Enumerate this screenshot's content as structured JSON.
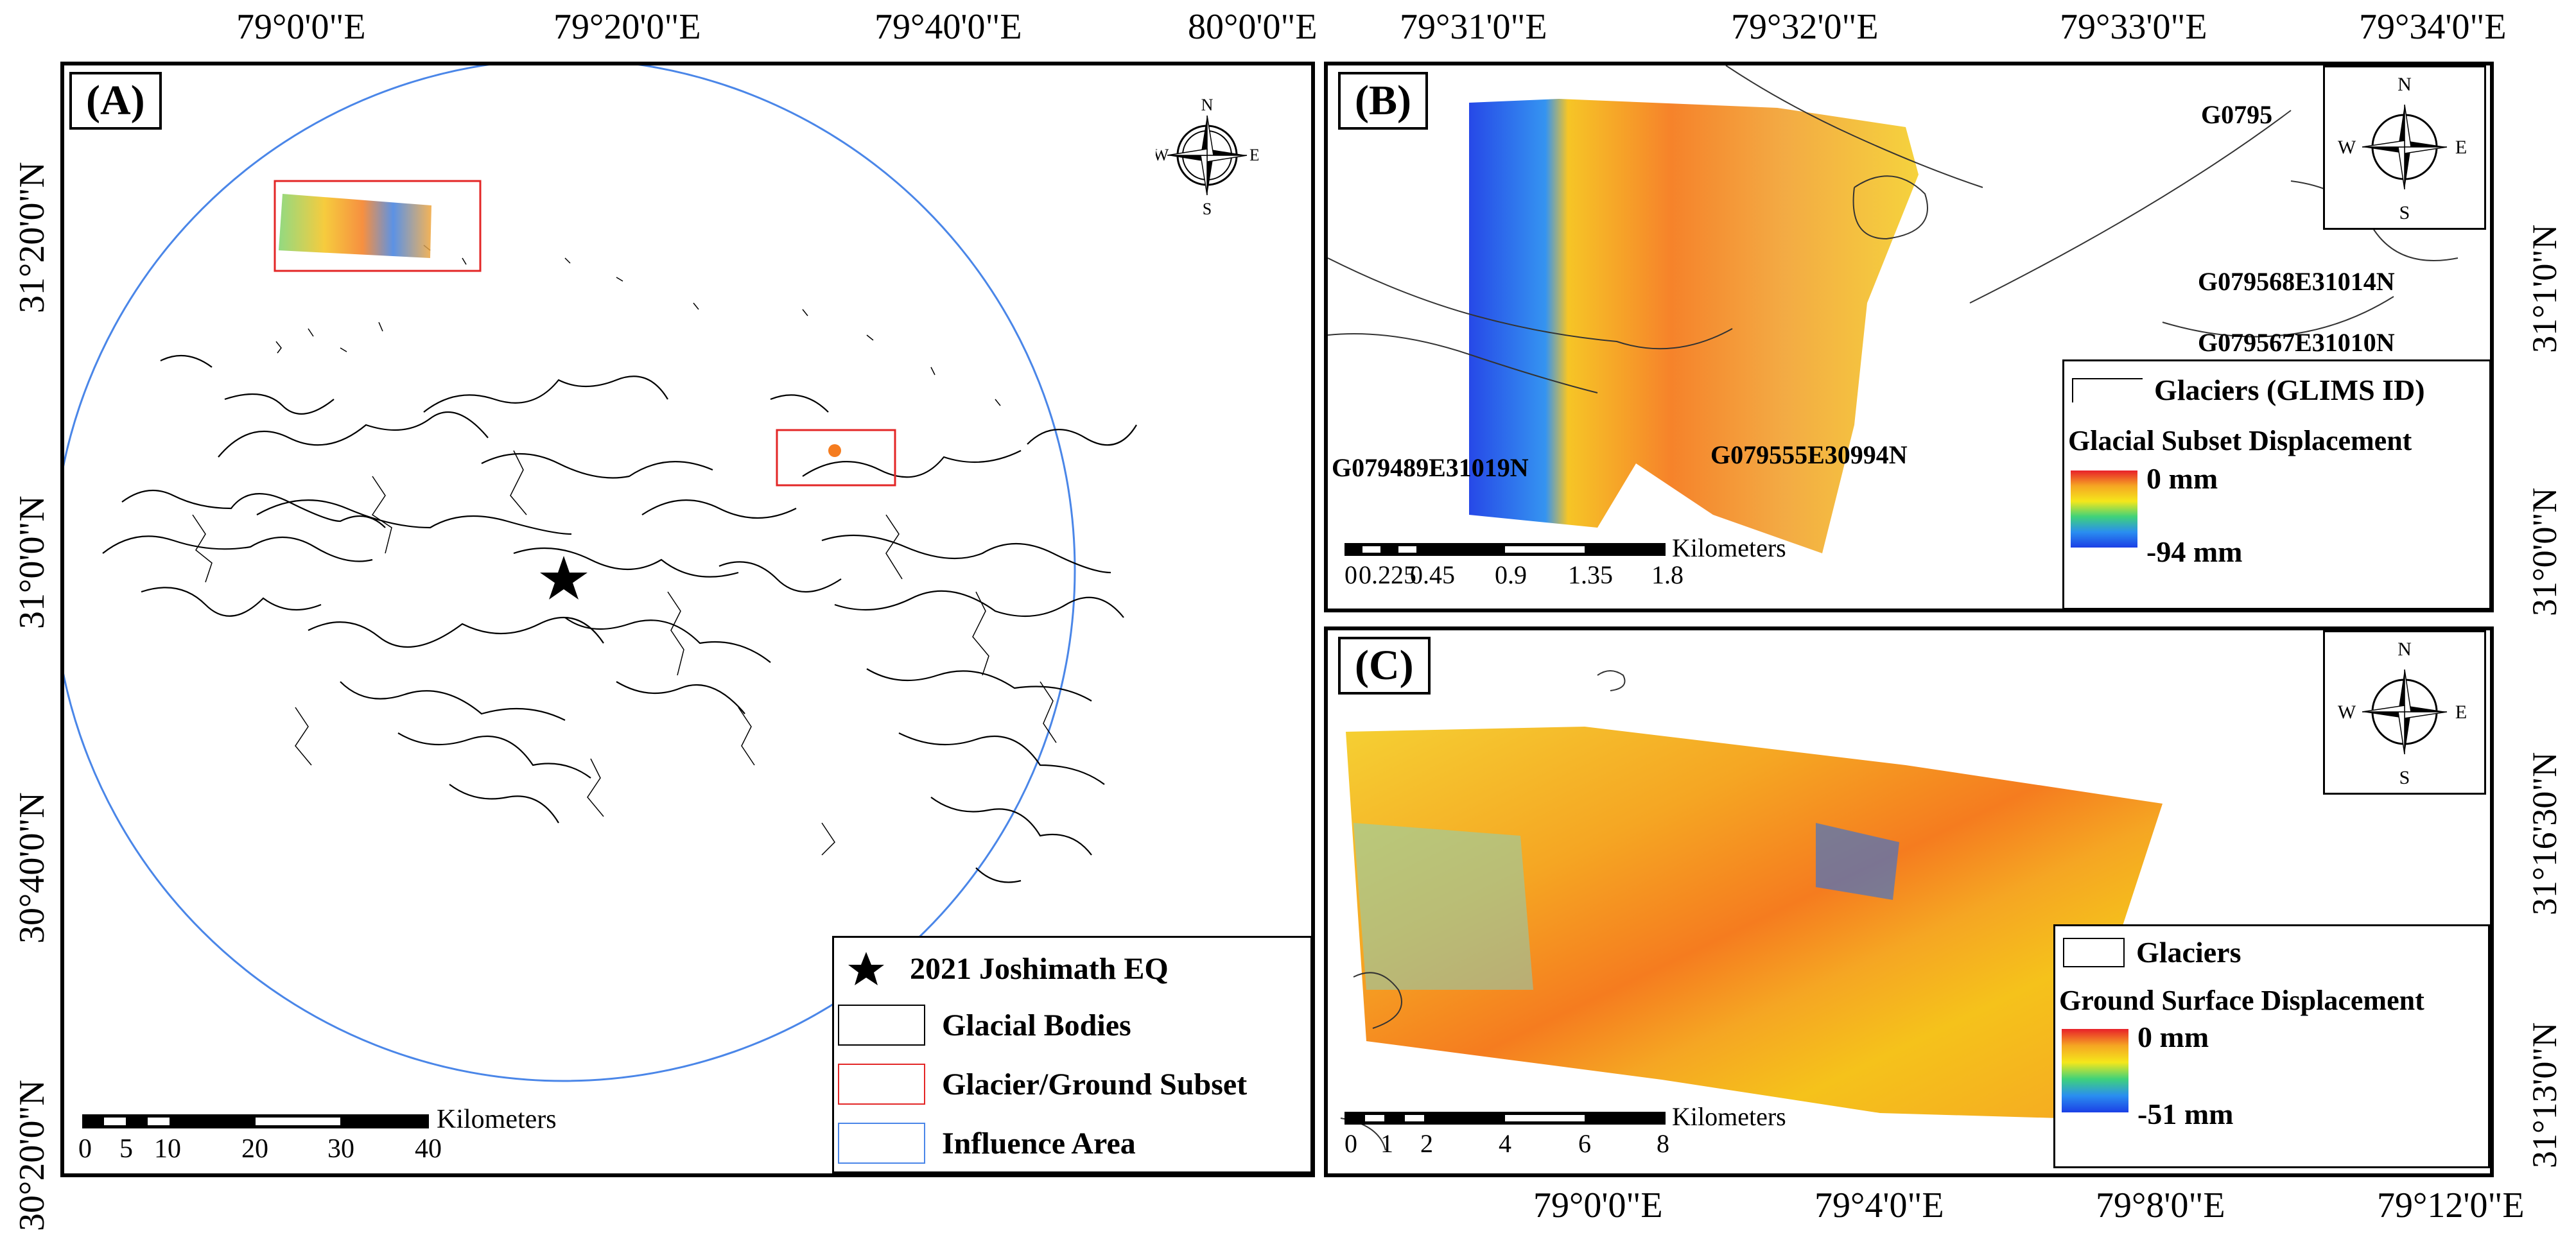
{
  "panel_a": {
    "tag": "(A)",
    "top_ticks": [
      "79°0'0\"E",
      "79°20'0\"E",
      "79°40'0\"E",
      "80°0'0\"E"
    ],
    "left_ticks": [
      "31°20'0\"N",
      "31°0'0\"N",
      "30°40'0\"N",
      "30°20'0\"N"
    ],
    "legend": [
      {
        "label": "2021 Joshimath EQ",
        "symbol": "star"
      },
      {
        "label": "Glacial Bodies",
        "symbol": "box-black"
      },
      {
        "label": "Glacier/Ground Subset",
        "symbol": "box-red"
      },
      {
        "label": "Influence Area",
        "symbol": "box-blue"
      }
    ],
    "scale": {
      "unit": "Kilometers",
      "ticks": [
        "0",
        "5",
        "10",
        "20",
        "30",
        "40"
      ]
    },
    "colors": {
      "influence": "#4a86e8",
      "subset": "#e32626",
      "glacier": "#000000"
    }
  },
  "panel_b": {
    "tag": "(B)",
    "top_ticks": [
      "79°31'0\"E",
      "79°32'0\"E",
      "79°33'0\"E",
      "79°34'0\"E"
    ],
    "right_ticks": [
      "31°1'0\"N",
      "31°0'0\"N"
    ],
    "glacier_ids": [
      "G079568E31014N",
      "G079567E31010N",
      "G079489E31019N",
      "G079555E30994N",
      "G0795"
    ],
    "legend": {
      "line_label": "Glaciers (GLIMS ID)",
      "ramp_title": "Glacial Subset Displacement",
      "max": "0 mm",
      "min": "-94 mm"
    },
    "scale": {
      "unit": "Kilometers",
      "ticks": [
        "0",
        "0.225",
        "0.45",
        "0.9",
        "1.35",
        "1.8"
      ]
    }
  },
  "panel_c": {
    "tag": "(C)",
    "bottom_ticks": [
      "79°0'0\"E",
      "79°4'0\"E",
      "79°8'0\"E",
      "79°12'0\"E"
    ],
    "right_ticks": [
      "31°16'30\"N",
      "31°13'0\"N"
    ],
    "legend": {
      "box_label": "Glaciers",
      "ramp_title": "Ground Surface Displacement",
      "max": "0 mm",
      "min": "-51 mm"
    },
    "scale": {
      "unit": "Kilometers",
      "ticks": [
        "0",
        "1",
        "2",
        "4",
        "6",
        "8"
      ]
    }
  },
  "compass": {
    "n": "N",
    "s": "S",
    "e": "E",
    "w": "W"
  }
}
